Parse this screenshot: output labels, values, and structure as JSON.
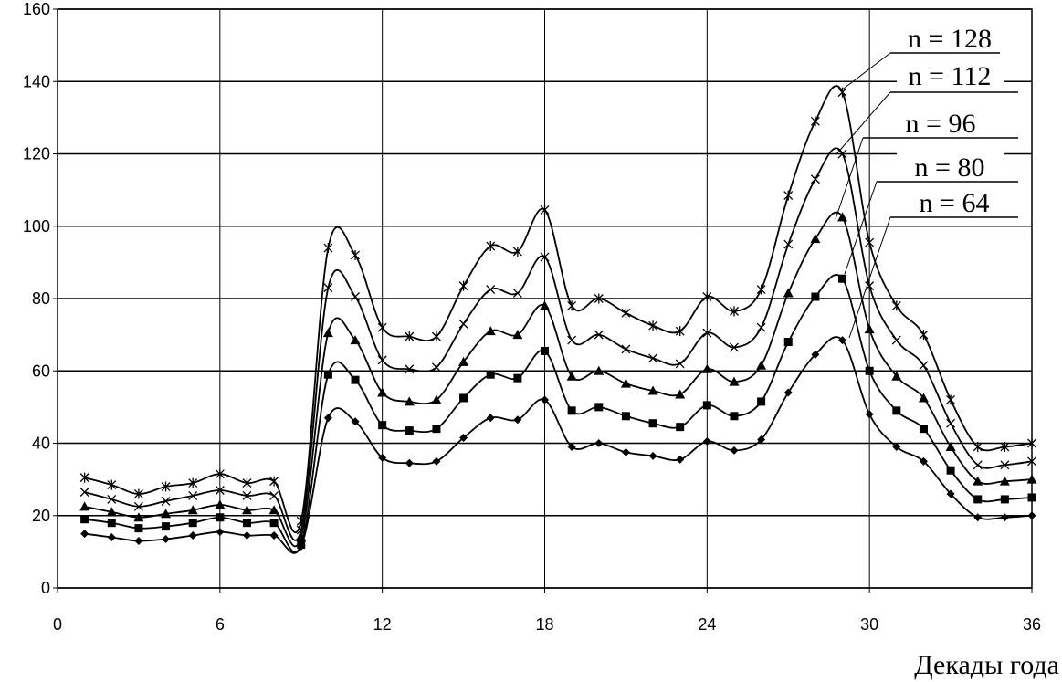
{
  "chart_data": {
    "type": "line",
    "x_label": "Декады года",
    "x": [
      1,
      2,
      3,
      4,
      5,
      6,
      7,
      8,
      9,
      10,
      11,
      12,
      13,
      14,
      15,
      16,
      17,
      18,
      19,
      20,
      21,
      22,
      23,
      24,
      25,
      26,
      27,
      28,
      29,
      30,
      31,
      32,
      33,
      34,
      35,
      36
    ],
    "xlim": [
      0,
      36
    ],
    "xticks": [
      0,
      6,
      12,
      18,
      24,
      30,
      36
    ],
    "ylim": [
      0,
      160
    ],
    "yticks": [
      0,
      20,
      40,
      60,
      80,
      100,
      120,
      140,
      160
    ],
    "grid": true,
    "series": [
      {
        "name": "n = 64",
        "color": "#000000",
        "marker": "diamond",
        "values": [
          15,
          14,
          13,
          13.5,
          14.5,
          15.5,
          14.5,
          14.5,
          11.5,
          47,
          46,
          36,
          34.5,
          35,
          41.5,
          47,
          46.5,
          52,
          39,
          40,
          37.5,
          36.5,
          35.5,
          40.5,
          38,
          41,
          54,
          64.5,
          68.5,
          48,
          39,
          35,
          26,
          19.5,
          19.5,
          20
        ]
      },
      {
        "name": "n = 80",
        "color": "#000000",
        "marker": "square",
        "values": [
          19,
          18,
          16.5,
          17,
          18,
          19.5,
          18,
          18,
          12,
          59,
          57.5,
          45,
          43.5,
          44,
          52.5,
          59,
          58,
          65.5,
          49,
          50,
          47.5,
          45.5,
          44.5,
          50.5,
          47.5,
          51.5,
          68,
          80.5,
          85.5,
          60,
          49,
          44,
          32.5,
          24.5,
          24.5,
          25
        ]
      },
      {
        "name": "n = 96",
        "color": "#000000",
        "marker": "triangle",
        "values": [
          22.5,
          21,
          19.5,
          20.5,
          21.5,
          23,
          21.5,
          21.5,
          14,
          70.5,
          68.5,
          54,
          51.5,
          52,
          62.5,
          71,
          70,
          78,
          58.5,
          60,
          56.5,
          54.5,
          53.5,
          60.5,
          57,
          61.5,
          81.5,
          96.5,
          102.5,
          71.5,
          58.5,
          52.5,
          39,
          29.5,
          29.5,
          30
        ]
      },
      {
        "name": "n = 112",
        "color": "#000000",
        "marker": "x",
        "values": [
          26.5,
          24.5,
          22.5,
          24,
          25.5,
          27,
          25.5,
          25.5,
          16,
          83,
          80.5,
          63,
          60.5,
          61,
          73,
          82.5,
          81.5,
          91.5,
          68.5,
          70,
          66,
          63.5,
          62,
          70.5,
          66.5,
          72,
          95,
          113,
          120,
          83.5,
          68.5,
          61.5,
          45.5,
          34,
          34,
          35
        ]
      },
      {
        "name": "n = 128",
        "color": "#000000",
        "marker": "star",
        "values": [
          30.5,
          28.5,
          26,
          28,
          29,
          31.5,
          29,
          29.5,
          18.5,
          94,
          92,
          72,
          69.5,
          69.5,
          83.5,
          94.5,
          93,
          104.5,
          78,
          80,
          76,
          72.5,
          71,
          80.5,
          76.5,
          82.5,
          108.5,
          129,
          137,
          95.5,
          78,
          70,
          52,
          39,
          39,
          40
        ]
      }
    ]
  }
}
